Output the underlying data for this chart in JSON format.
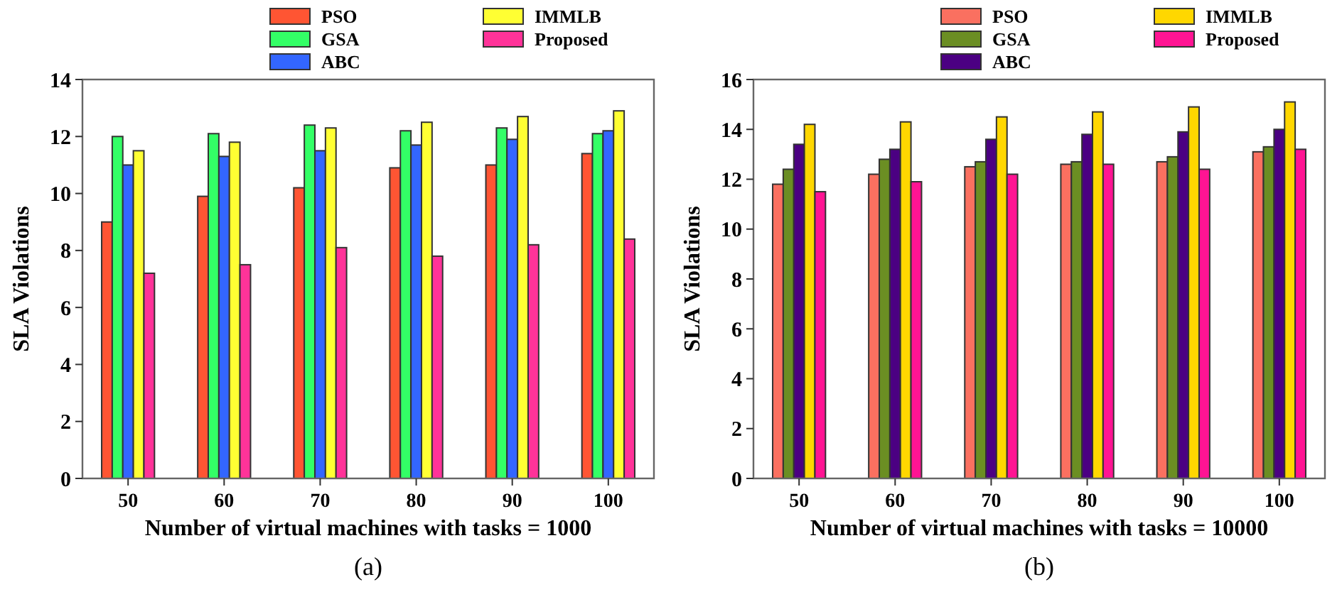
{
  "chart_data": [
    {
      "type": "bar",
      "xlabel": "Number of virtual machines with tasks = 1000",
      "ylabel": "SLA Violations",
      "categories": [
        "50",
        "60",
        "70",
        "80",
        "90",
        "100"
      ],
      "ylim": [
        0,
        14
      ],
      "yticks": [
        0,
        2,
        4,
        6,
        8,
        10,
        12,
        14
      ],
      "legend": "top right",
      "annotations": [
        "(a)"
      ],
      "series": [
        {
          "name": "PSO",
          "color": "#ff5533",
          "values": [
            9.0,
            9.9,
            10.2,
            10.9,
            11.0,
            11.4
          ]
        },
        {
          "name": "GSA",
          "color": "#33ff66",
          "values": [
            12.0,
            12.1,
            12.4,
            12.2,
            12.3,
            12.1
          ]
        },
        {
          "name": "ABC",
          "color": "#3366ff",
          "values": [
            11.0,
            11.3,
            11.5,
            11.7,
            11.9,
            12.2
          ]
        },
        {
          "name": "IMMLB",
          "color": "#ffff33",
          "values": [
            11.5,
            11.8,
            12.3,
            12.5,
            12.7,
            12.9
          ]
        },
        {
          "name": "Proposed",
          "color": "#ff3399",
          "values": [
            7.2,
            7.5,
            8.1,
            7.8,
            8.2,
            8.4
          ]
        }
      ]
    },
    {
      "type": "bar",
      "xlabel": "Number of virtual machines with tasks = 10000",
      "ylabel": "SLA Violations",
      "categories": [
        "50",
        "60",
        "70",
        "80",
        "90",
        "100"
      ],
      "ylim": [
        0,
        16
      ],
      "yticks": [
        0,
        2,
        4,
        6,
        8,
        10,
        12,
        14,
        16
      ],
      "legend": "top right",
      "annotations": [
        "(b)"
      ],
      "series": [
        {
          "name": "PSO",
          "color": "#fa7060",
          "values": [
            11.8,
            12.2,
            12.5,
            12.6,
            12.7,
            13.1
          ]
        },
        {
          "name": "GSA",
          "color": "#6b8e23",
          "values": [
            12.4,
            12.8,
            12.7,
            12.7,
            12.9,
            13.3
          ]
        },
        {
          "name": "ABC",
          "color": "#4b0082",
          "values": [
            13.4,
            13.2,
            13.6,
            13.8,
            13.9,
            14.0
          ]
        },
        {
          "name": "IMMLB",
          "color": "#ffd700",
          "values": [
            14.2,
            14.3,
            14.5,
            14.7,
            14.9,
            15.1
          ]
        },
        {
          "name": "Proposed",
          "color": "#ff1493",
          "values": [
            11.5,
            11.9,
            12.2,
            12.6,
            12.4,
            13.2
          ]
        }
      ]
    }
  ]
}
